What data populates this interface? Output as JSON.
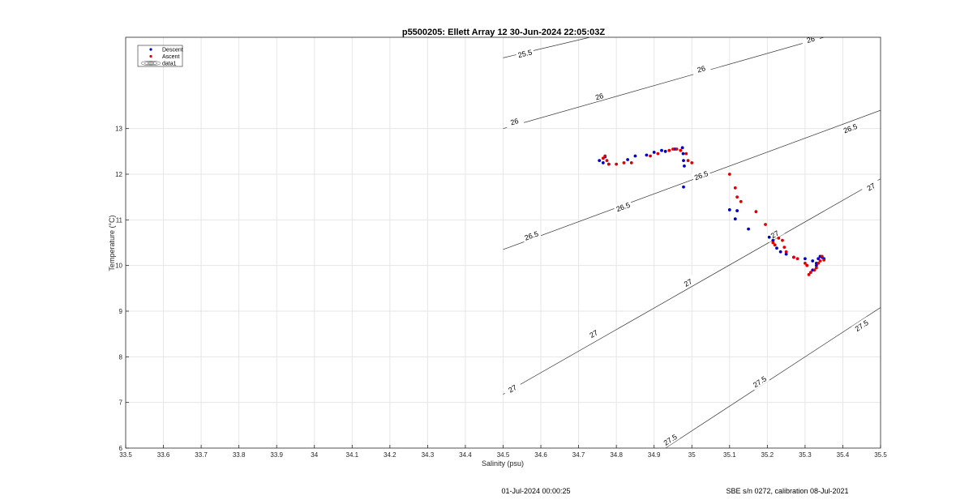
{
  "chart_data": {
    "type": "scatter",
    "title": "p5500205: Ellett Array 12 30-Jun-2024 22:05:03Z",
    "xlabel": "Salinity (psu)",
    "ylabel": "Temperature (°C)",
    "xlim": [
      33.5,
      35.5
    ],
    "ylim": [
      6,
      15
    ],
    "x_ticks": [
      "33.5",
      "33.6",
      "33.7",
      "33.8",
      "33.9",
      "34",
      "34.1",
      "34.2",
      "34.3",
      "34.4",
      "34.5",
      "34.6",
      "34.7",
      "34.8",
      "34.9",
      "35",
      "35.1",
      "35.2",
      "35.3",
      "35.4",
      "35.5"
    ],
    "y_ticks": [
      "6",
      "7",
      "8",
      "9",
      "10",
      "11",
      "12",
      "13"
    ],
    "grid": true,
    "legend": {
      "placement": "top-left",
      "entries": [
        "Descent",
        "Ascent",
        "data1"
      ]
    },
    "series": [
      {
        "name": "Descent",
        "color": "#0000cc",
        "points": [
          [
            34.755,
            12.3
          ],
          [
            34.765,
            12.25
          ],
          [
            34.77,
            12.38
          ],
          [
            34.78,
            12.22
          ],
          [
            34.83,
            12.32
          ],
          [
            34.85,
            12.4
          ],
          [
            34.88,
            12.42
          ],
          [
            34.9,
            12.48
          ],
          [
            34.92,
            12.52
          ],
          [
            34.93,
            12.5
          ],
          [
            34.955,
            12.55
          ],
          [
            34.975,
            12.58
          ],
          [
            34.977,
            12.45
          ],
          [
            34.978,
            12.3
          ],
          [
            34.98,
            12.18
          ],
          [
            34.978,
            11.72
          ],
          [
            35.1,
            11.22
          ],
          [
            35.115,
            11.02
          ],
          [
            35.12,
            11.2
          ],
          [
            35.15,
            10.8
          ],
          [
            35.205,
            10.62
          ],
          [
            35.215,
            10.55
          ],
          [
            35.225,
            10.38
          ],
          [
            35.235,
            10.3
          ],
          [
            35.25,
            10.25
          ],
          [
            35.27,
            10.18
          ],
          [
            35.3,
            10.15
          ],
          [
            35.32,
            10.1
          ],
          [
            35.33,
            10.05
          ],
          [
            35.335,
            10.15
          ],
          [
            35.34,
            10.2
          ],
          [
            35.345,
            10.18
          ],
          [
            35.35,
            10.15
          ],
          [
            35.32,
            9.9
          ],
          [
            35.33,
            10.0
          ]
        ]
      },
      {
        "name": "Ascent",
        "color": "#dd0000",
        "points": [
          [
            34.765,
            12.35
          ],
          [
            34.77,
            12.4
          ],
          [
            34.775,
            12.3
          ],
          [
            34.78,
            12.22
          ],
          [
            34.8,
            12.22
          ],
          [
            34.82,
            12.25
          ],
          [
            34.84,
            12.25
          ],
          [
            34.89,
            12.4
          ],
          [
            34.91,
            12.45
          ],
          [
            34.94,
            12.52
          ],
          [
            34.95,
            12.55
          ],
          [
            34.96,
            12.55
          ],
          [
            34.97,
            12.52
          ],
          [
            34.985,
            12.45
          ],
          [
            34.99,
            12.3
          ],
          [
            35.0,
            12.25
          ],
          [
            35.1,
            12.0
          ],
          [
            35.115,
            11.7
          ],
          [
            35.12,
            11.5
          ],
          [
            35.13,
            11.4
          ],
          [
            35.17,
            11.18
          ],
          [
            35.195,
            10.9
          ],
          [
            35.215,
            10.5
          ],
          [
            35.22,
            10.45
          ],
          [
            35.23,
            10.6
          ],
          [
            35.24,
            10.55
          ],
          [
            35.245,
            10.4
          ],
          [
            35.25,
            10.3
          ],
          [
            35.27,
            10.18
          ],
          [
            35.28,
            10.15
          ],
          [
            35.3,
            10.05
          ],
          [
            35.305,
            10.0
          ],
          [
            35.31,
            9.8
          ],
          [
            35.315,
            9.85
          ],
          [
            35.325,
            9.9
          ],
          [
            35.33,
            9.95
          ],
          [
            35.335,
            10.05
          ],
          [
            35.34,
            10.1
          ],
          [
            35.345,
            10.2
          ],
          [
            35.35,
            10.12
          ]
        ]
      }
    ],
    "contours": [
      {
        "label": "25.5",
        "from": [
          34.5,
          14.55
        ],
        "to": [
          34.73,
          15.0
        ],
        "labels_at": [
          [
            34.558,
            14.64
          ]
        ]
      },
      {
        "label": "26",
        "from": [
          34.5,
          13.0
        ],
        "to": [
          35.35,
          15.0
        ],
        "labels_at": [
          [
            34.53,
            13.15
          ],
          [
            34.755,
            13.7
          ],
          [
            35.025,
            14.3
          ],
          [
            35.315,
            14.95
          ]
        ]
      },
      {
        "label": "26.5",
        "from": [
          34.5,
          10.35
        ],
        "to": [
          35.5,
          13.4
        ],
        "labels_at": [
          [
            34.575,
            10.65
          ],
          [
            34.818,
            11.28
          ],
          [
            35.025,
            11.97
          ],
          [
            35.42,
            13.0
          ]
        ]
      },
      {
        "label": "27",
        "from": [
          34.5,
          7.18
        ],
        "to": [
          35.5,
          11.9
        ],
        "labels_at": [
          [
            34.525,
            7.3
          ],
          [
            34.74,
            8.5
          ],
          [
            34.99,
            9.62
          ],
          [
            35.22,
            10.68
          ],
          [
            35.475,
            11.72
          ]
        ]
      },
      {
        "label": "27.5",
        "from": [
          34.93,
          6.0
        ],
        "to": [
          35.5,
          9.08
        ],
        "labels_at": [
          [
            34.943,
            6.18
          ],
          [
            35.18,
            7.45
          ],
          [
            35.45,
            8.68
          ]
        ]
      }
    ]
  },
  "footer": {
    "timestamp": "01-Jul-2024 00:00:25",
    "calibration": "SBE s/n 0272, calibration 08-Jul-2021"
  }
}
